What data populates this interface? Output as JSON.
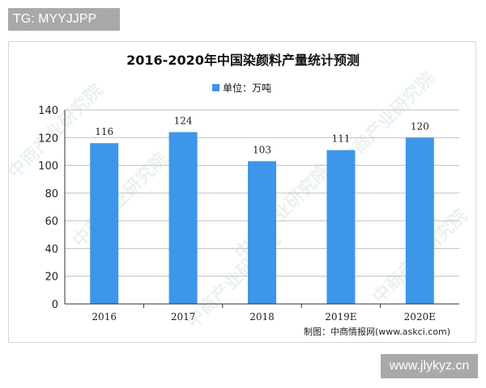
{
  "corner_tag": "TG: MYYJJPP",
  "bottom_watermark": "www.jlykyz.cn",
  "background_watermark": "中商产业研究院",
  "source_note": "制图：中商情报网(www.askci.com)",
  "colors": {
    "bar": "#3d96e8",
    "axis": "#333333",
    "grid": "#bfbfbf",
    "watermark": "#d9e9e0"
  },
  "chart_data": {
    "type": "bar",
    "title": "2016-2020年中国染颜料产量统计预测",
    "xlabel": "",
    "ylabel": "",
    "categories": [
      "2016",
      "2017",
      "2018",
      "2019E",
      "2020E"
    ],
    "series": [
      {
        "name": "单位：万吨",
        "values": [
          116,
          124,
          103,
          111,
          120
        ]
      }
    ],
    "data_labels": [
      "116",
      "124",
      "103",
      "111",
      "120"
    ],
    "ylim": [
      0,
      140
    ],
    "yticks": [
      0,
      20,
      40,
      60,
      80,
      100,
      120,
      140
    ],
    "grid": true,
    "legend": "top-center"
  }
}
